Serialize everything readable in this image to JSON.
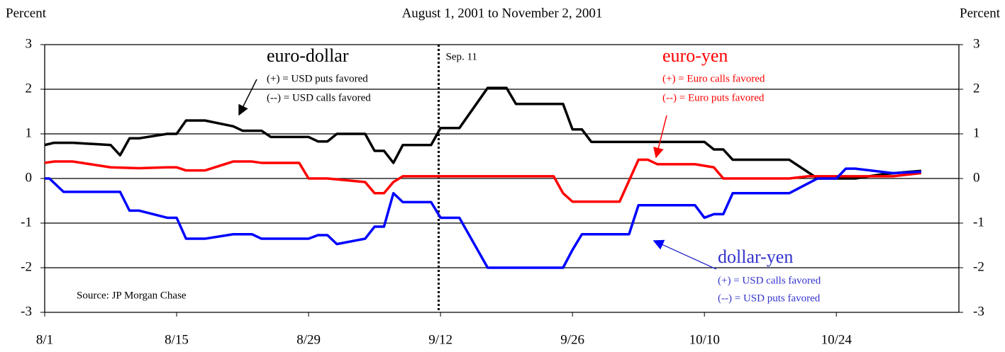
{
  "chart_data": {
    "type": "line",
    "title": "August 1, 2001 to November 2, 2001",
    "y_label": "Percent",
    "y2_label": "Percent",
    "xlim": [
      0,
      97
    ],
    "xticks": [
      {
        "value": 0,
        "label": "8/1"
      },
      {
        "value": 14,
        "label": "8/15"
      },
      {
        "value": 28,
        "label": "8/29"
      },
      {
        "value": 42,
        "label": "9/12"
      },
      {
        "value": 56,
        "label": "9/26"
      },
      {
        "value": 70,
        "label": "10/10"
      },
      {
        "value": 84,
        "label": "10/24"
      }
    ],
    "ylim": [
      -3,
      3
    ],
    "yticks": [
      -3,
      -2,
      -1,
      0,
      1,
      2,
      3
    ],
    "y2lim": [
      -3,
      3
    ],
    "y2ticks": [
      -3,
      -2,
      -1,
      0,
      1,
      2,
      3
    ],
    "grid": true,
    "vline": {
      "x": 41.8,
      "label": "Sep. 11"
    },
    "annotations": {
      "euro_dollar": [
        "euro-dollar",
        "(+) = USD puts favored",
        "(--) = USD calls favored"
      ],
      "euro_yen": [
        "euro-yen",
        "(+) = Euro calls favored",
        "(--) = Euro puts favored"
      ],
      "dollar_yen": [
        "dollar-yen",
        "(+) = USD calls favored",
        "(--) = USD puts favored"
      ],
      "source": "Source: JP Morgan Chase"
    },
    "series": [
      {
        "name": "euro-dollar",
        "color": "#000000",
        "x": [
          0,
          1,
          3,
          7,
          8,
          9,
          10,
          13,
          14,
          15,
          17,
          20,
          21,
          23,
          24,
          28,
          29,
          30,
          31,
          34,
          35,
          36,
          37,
          38,
          41,
          42,
          44,
          47,
          49,
          50,
          55,
          56,
          57,
          58,
          70,
          71,
          72,
          73,
          79,
          82,
          86,
          89,
          93
        ],
        "values": [
          0.75,
          0.8,
          0.8,
          0.75,
          0.52,
          0.9,
          0.9,
          1.0,
          1.0,
          1.3,
          1.3,
          1.17,
          1.07,
          1.07,
          0.93,
          0.93,
          0.83,
          0.83,
          1.0,
          1.0,
          0.62,
          0.62,
          0.35,
          0.75,
          0.75,
          1.13,
          1.13,
          2.03,
          2.03,
          1.67,
          1.67,
          1.1,
          1.1,
          0.82,
          0.82,
          0.65,
          0.65,
          0.42,
          0.42,
          0.0,
          0.0,
          0.1,
          0.17
        ]
      },
      {
        "name": "euro-yen",
        "color": "#ff0000",
        "x": [
          0,
          1,
          3,
          7,
          10,
          13,
          14,
          15,
          17,
          20,
          22,
          23,
          27,
          28,
          30,
          34,
          35,
          36,
          37,
          38,
          54,
          55,
          56,
          61,
          63,
          64,
          65,
          69,
          71,
          72,
          79,
          81,
          90,
          93
        ],
        "values": [
          0.35,
          0.38,
          0.38,
          0.25,
          0.23,
          0.25,
          0.25,
          0.18,
          0.18,
          0.38,
          0.38,
          0.35,
          0.35,
          0.0,
          0.0,
          -0.08,
          -0.33,
          -0.33,
          -0.08,
          0.05,
          0.05,
          -0.33,
          -0.52,
          -0.52,
          0.42,
          0.42,
          0.32,
          0.32,
          0.25,
          0.0,
          0.0,
          0.05,
          0.05,
          0.12
        ]
      },
      {
        "name": "dollar-yen",
        "color": "#0000ff",
        "x": [
          0,
          0.5,
          2,
          8,
          9,
          10,
          13,
          14,
          15,
          17,
          20,
          22,
          23,
          28,
          29,
          30,
          31,
          34,
          35,
          36,
          37,
          38,
          41,
          42,
          44,
          47,
          55,
          56,
          57,
          62,
          63,
          69,
          70,
          71,
          72,
          73,
          79,
          82,
          84,
          85,
          86,
          90,
          93
        ],
        "values": [
          0.0,
          0.0,
          -0.3,
          -0.3,
          -0.72,
          -0.72,
          -0.88,
          -0.88,
          -1.35,
          -1.35,
          -1.25,
          -1.25,
          -1.35,
          -1.35,
          -1.27,
          -1.27,
          -1.47,
          -1.35,
          -1.08,
          -1.08,
          -0.33,
          -0.53,
          -0.53,
          -0.88,
          -0.88,
          -2.0,
          -2.0,
          -1.6,
          -1.25,
          -1.25,
          -0.6,
          -0.6,
          -0.88,
          -0.8,
          -0.8,
          -0.33,
          -0.33,
          0.0,
          0.0,
          0.22,
          0.22,
          0.12,
          0.15
        ]
      }
    ]
  }
}
